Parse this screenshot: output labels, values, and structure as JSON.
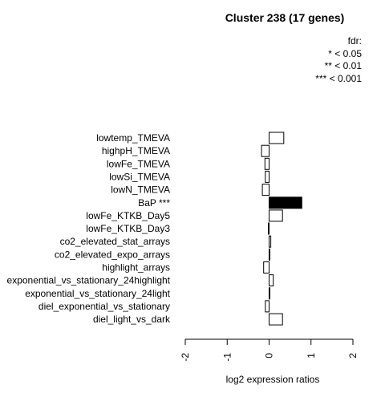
{
  "chart_data": {
    "type": "bar",
    "orientation": "horizontal",
    "title": "Cluster 238 (17 genes)",
    "xlabel": "log2 expression ratios",
    "ylabel": "",
    "xlim": [
      -2,
      2
    ],
    "xticks": [
      "-2",
      "-1",
      "0",
      "1",
      "2"
    ],
    "legend": {
      "title": "fdr:",
      "entries": [
        "* < 0.05",
        "** < 0.01",
        "*** < 0.001"
      ],
      "placement": "top-right"
    },
    "categories": [
      "lowtemp_TMEVA",
      "highpH_TMEVA",
      "lowFe_TMEVA",
      "lowSi_TMEVA",
      "lowN_TMEVA",
      "BaP ***",
      "lowFe_KTKB_Day5",
      "lowFe_KTKB_Day3",
      "co2_elevated_stat_arrays",
      "co2_elevated_expo_arrays",
      "highlight_arrays",
      "exponential_vs_stationary_24highlight",
      "exponential_vs_stationary_24light",
      "diel_exponential_vs_stationary",
      "diel_light_vs_dark"
    ],
    "values": [
      0.35,
      -0.18,
      -0.1,
      -0.09,
      -0.16,
      0.78,
      0.32,
      -0.02,
      0.04,
      0.02,
      -0.13,
      0.1,
      0.02,
      -0.09,
      0.32
    ],
    "highlighted": [
      false,
      false,
      false,
      false,
      false,
      true,
      false,
      false,
      false,
      false,
      false,
      false,
      false,
      false,
      false
    ],
    "colors": {
      "bar_fill": "#ffffff",
      "highlight_fill": "#000000",
      "stroke": "#000000"
    }
  }
}
